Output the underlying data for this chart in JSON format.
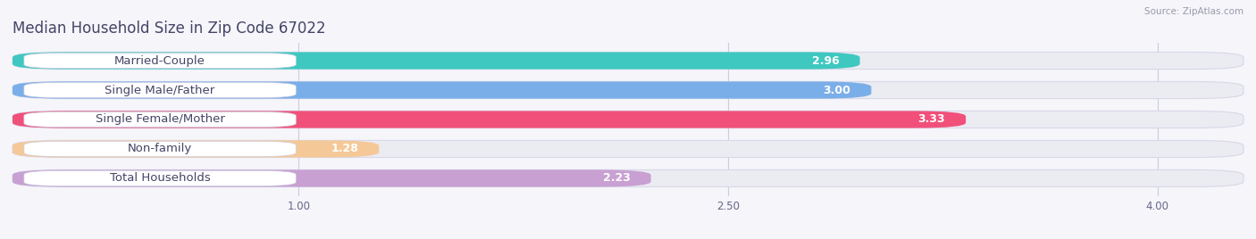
{
  "title": "Median Household Size in Zip Code 67022",
  "source": "Source: ZipAtlas.com",
  "categories": [
    "Married-Couple",
    "Single Male/Father",
    "Single Female/Mother",
    "Non-family",
    "Total Households"
  ],
  "values": [
    2.96,
    3.0,
    3.33,
    1.28,
    2.23
  ],
  "bar_colors": [
    "#3ec8c0",
    "#7aaee8",
    "#f0507a",
    "#f5c898",
    "#c8a0d2"
  ],
  "bar_edge_colors": [
    "#2aadaa",
    "#5a8ec8",
    "#d03560",
    "#d5a870",
    "#a880b8"
  ],
  "label_text_colors": [
    "#2a7a78",
    "#4a6a9a",
    "#a03050",
    "#c89040",
    "#8060a0"
  ],
  "xmin": 0.0,
  "xmax": 4.3,
  "xticks": [
    1.0,
    2.5,
    4.0
  ],
  "xtick_labels": [
    "1.00",
    "2.50",
    "4.00"
  ],
  "background_color": "#f5f5fa",
  "bar_bg_color": "#ebebf2",
  "bar_bg_edge_color": "#d8d8e8",
  "title_fontsize": 12,
  "label_fontsize": 9.5,
  "value_fontsize": 9,
  "bar_height": 0.58,
  "bar_gap": 0.42
}
